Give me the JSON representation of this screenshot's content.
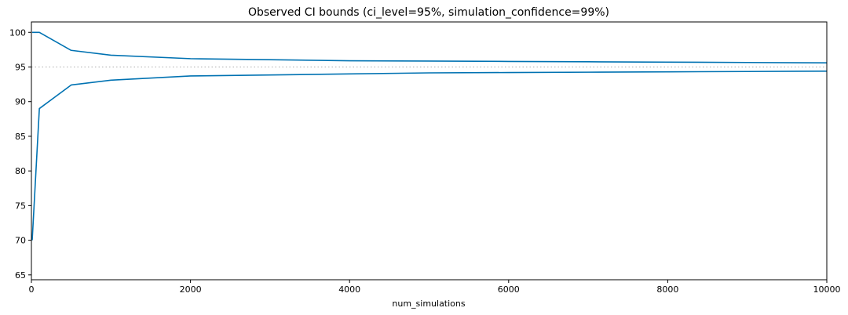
{
  "chart_data": {
    "type": "line",
    "title": "Observed CI bounds (ci_level=95%, simulation_confidence=99%)",
    "xlabel": "num_simulations",
    "ylabel": "",
    "xlim": [
      0,
      10000
    ],
    "ylim": [
      64.3,
      101.5
    ],
    "xticks": [
      0,
      2000,
      4000,
      6000,
      8000,
      10000
    ],
    "yticks": [
      65,
      70,
      75,
      80,
      85,
      90,
      95,
      100
    ],
    "xtick_labels": [
      "0",
      "2000",
      "4000",
      "6000",
      "8000",
      "10000"
    ],
    "ytick_labels": [
      "65",
      "70",
      "75",
      "80",
      "85",
      "90",
      "95",
      "100"
    ],
    "grid": false,
    "series": [
      {
        "role": "upper-bound",
        "color": "#0072b2",
        "x": [
          10,
          100,
          500,
          1000,
          2000,
          3000,
          4000,
          5000,
          6000,
          7000,
          8000,
          9000,
          10000
        ],
        "y": [
          100.0,
          100.0,
          97.4,
          96.7,
          96.2,
          96.05,
          95.9,
          95.85,
          95.8,
          95.75,
          95.7,
          95.65,
          95.6
        ]
      },
      {
        "role": "lower-bound",
        "color": "#0072b2",
        "x": [
          10,
          100,
          500,
          1000,
          2000,
          3000,
          4000,
          5000,
          6000,
          7000,
          8000,
          9000,
          10000
        ],
        "y": [
          70.0,
          89.0,
          92.4,
          93.1,
          93.7,
          93.85,
          94.0,
          94.15,
          94.2,
          94.25,
          94.3,
          94.35,
          94.4
        ]
      }
    ],
    "reference_line": {
      "y": 95,
      "color": "#bbbbbb",
      "style": "dotted"
    }
  }
}
